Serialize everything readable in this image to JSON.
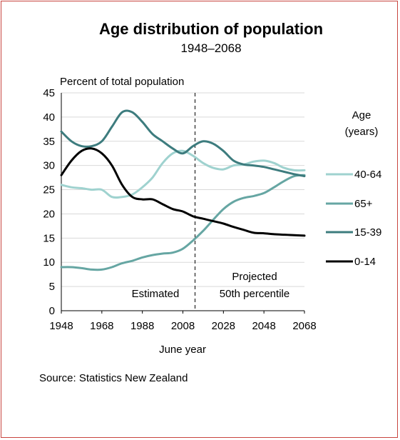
{
  "chart_data": {
    "type": "line",
    "title": "Age distribution of population",
    "subtitle": "1948–2068",
    "ylabel": "Percent of total population",
    "xlabel": "June year",
    "source": "Source: Statistics New Zealand",
    "xlim": [
      1948,
      2068
    ],
    "ylim": [
      0,
      45
    ],
    "xticks": [
      1948,
      1968,
      1988,
      2008,
      2028,
      2048,
      2068
    ],
    "yticks": [
      0,
      5,
      10,
      15,
      20,
      25,
      30,
      35,
      40,
      45
    ],
    "grid": true,
    "legend_title": "Age\n(years)",
    "legend_position": "right",
    "divider_year": 2014,
    "annotations": {
      "estimated": "Estimated",
      "projected": "Projected",
      "percentile": "50th percentile"
    },
    "series": [
      {
        "name": "40-64",
        "color": "#9fd2cf",
        "x": [
          1948,
          1953,
          1958,
          1963,
          1968,
          1973,
          1978,
          1983,
          1988,
          1993,
          1998,
          2003,
          2008,
          2013,
          2018,
          2023,
          2028,
          2033,
          2038,
          2043,
          2048,
          2053,
          2058,
          2063,
          2068
        ],
        "y": [
          26,
          25.5,
          25.3,
          25,
          25,
          23.5,
          23.5,
          24,
          25.5,
          27.5,
          30.5,
          32.5,
          33,
          32,
          30.5,
          29.5,
          29.2,
          30,
          30.2,
          30.8,
          31,
          30.5,
          29.5,
          29,
          29
        ]
      },
      {
        "name": "65+",
        "color": "#66a6a3",
        "x": [
          1948,
          1953,
          1958,
          1963,
          1968,
          1973,
          1978,
          1983,
          1988,
          1993,
          1998,
          2003,
          2008,
          2013,
          2018,
          2023,
          2028,
          2033,
          2038,
          2043,
          2048,
          2053,
          2058,
          2063,
          2068
        ],
        "y": [
          9,
          9,
          8.8,
          8.5,
          8.5,
          9,
          9.8,
          10.3,
          11,
          11.5,
          11.8,
          12,
          12.8,
          14.5,
          16.5,
          18.8,
          21,
          22.5,
          23.3,
          23.7,
          24.3,
          25.5,
          26.8,
          27.8,
          28
        ]
      },
      {
        "name": "15-39",
        "color": "#3d7c7e",
        "x": [
          1948,
          1953,
          1958,
          1963,
          1968,
          1973,
          1978,
          1983,
          1988,
          1993,
          1998,
          2003,
          2008,
          2013,
          2018,
          2023,
          2028,
          2033,
          2038,
          2043,
          2048,
          2053,
          2058,
          2063,
          2068
        ],
        "y": [
          37,
          35,
          34,
          34,
          35,
          38,
          41,
          41,
          39,
          36.5,
          35,
          33.5,
          32.5,
          34,
          35,
          34.5,
          33,
          31,
          30.2,
          30,
          29.7,
          29.2,
          28.7,
          28.2,
          27.8
        ]
      },
      {
        "name": "0-14",
        "color": "#000000",
        "x": [
          1948,
          1953,
          1958,
          1963,
          1968,
          1973,
          1978,
          1983,
          1988,
          1993,
          1998,
          2003,
          2008,
          2013,
          2018,
          2023,
          2028,
          2033,
          2038,
          2043,
          2048,
          2053,
          2058,
          2063,
          2068
        ],
        "y": [
          28,
          31,
          33,
          33.5,
          32.5,
          30,
          26,
          23.5,
          23,
          23,
          22,
          21,
          20.5,
          19.5,
          19,
          18.5,
          18,
          17.3,
          16.7,
          16.1,
          16,
          15.8,
          15.7,
          15.6,
          15.5
        ]
      }
    ]
  }
}
